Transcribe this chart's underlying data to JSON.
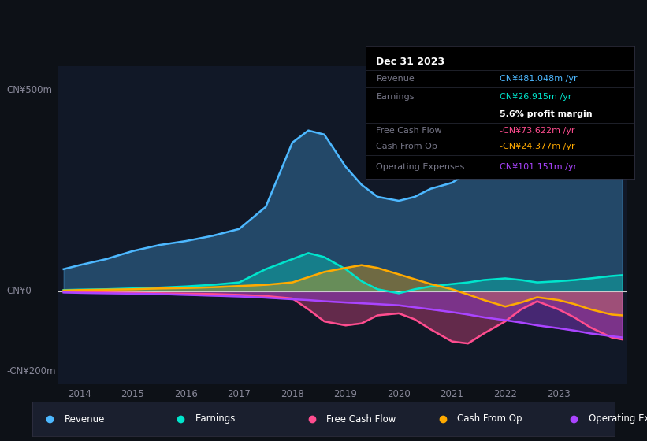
{
  "bg_color": "#0d1117",
  "plot_bg_color": "#111827",
  "ylim": [
    -230,
    560
  ],
  "xlim": [
    2013.6,
    2024.3
  ],
  "xticks": [
    2014,
    2015,
    2016,
    2017,
    2018,
    2019,
    2020,
    2021,
    2022,
    2023
  ],
  "years": [
    2013.7,
    2014.0,
    2014.5,
    2015.0,
    2015.5,
    2016.0,
    2016.5,
    2017.0,
    2017.5,
    2018.0,
    2018.3,
    2018.6,
    2019.0,
    2019.3,
    2019.6,
    2020.0,
    2020.3,
    2020.6,
    2021.0,
    2021.3,
    2021.6,
    2022.0,
    2022.3,
    2022.6,
    2023.0,
    2023.3,
    2023.6,
    2024.0,
    2024.2
  ],
  "revenue": [
    55,
    65,
    80,
    100,
    115,
    125,
    138,
    155,
    210,
    370,
    400,
    390,
    310,
    265,
    235,
    225,
    235,
    255,
    270,
    295,
    325,
    355,
    400,
    440,
    470,
    500,
    520,
    545,
    548
  ],
  "earnings": [
    3,
    4,
    5,
    7,
    9,
    12,
    16,
    22,
    55,
    80,
    95,
    85,
    55,
    25,
    5,
    -5,
    5,
    12,
    18,
    22,
    28,
    32,
    28,
    22,
    25,
    28,
    32,
    38,
    40
  ],
  "free_cash_flow": [
    -1,
    -2,
    -3,
    -4,
    -5,
    -6,
    -7,
    -9,
    -12,
    -18,
    -45,
    -75,
    -85,
    -80,
    -60,
    -55,
    -70,
    -95,
    -125,
    -130,
    -105,
    -75,
    -45,
    -25,
    -45,
    -65,
    -90,
    -115,
    -120
  ],
  "cash_from_op": [
    2,
    3,
    4,
    5,
    7,
    8,
    10,
    13,
    16,
    22,
    35,
    48,
    58,
    65,
    58,
    42,
    30,
    18,
    5,
    -8,
    -22,
    -38,
    -28,
    -15,
    -22,
    -32,
    -45,
    -58,
    -60
  ],
  "operating_expenses": [
    -3,
    -4,
    -5,
    -6,
    -7,
    -9,
    -11,
    -13,
    -16,
    -20,
    -22,
    -25,
    -28,
    -30,
    -32,
    -35,
    -40,
    -45,
    -52,
    -58,
    -65,
    -72,
    -78,
    -85,
    -92,
    -98,
    -105,
    -112,
    -115
  ],
  "color_revenue": "#4db8ff",
  "color_earnings": "#00e5cc",
  "color_fcf": "#ff4d8f",
  "color_cashop": "#ffaa00",
  "color_opex": "#aa44ff",
  "ylabel_500": "CN¥500m",
  "ylabel_0": "CN¥0",
  "ylabel_neg200": "-CN¥200m",
  "info_box": {
    "title": "Dec 31 2023",
    "revenue_label": "Revenue",
    "revenue_val": "CN¥481.048m /yr",
    "earnings_label": "Earnings",
    "earnings_val": "CN¥26.915m /yr",
    "margin_val": "5.6% profit margin",
    "fcf_label": "Free Cash Flow",
    "fcf_val": "-CN¥73.622m /yr",
    "cashop_label": "Cash From Op",
    "cashop_val": "-CN¥24.377m /yr",
    "opex_label": "Operating Expenses",
    "opex_val": "CN¥101.151m /yr"
  },
  "legend": [
    {
      "label": "Revenue",
      "color": "#4db8ff"
    },
    {
      "label": "Earnings",
      "color": "#00e5cc"
    },
    {
      "label": "Free Cash Flow",
      "color": "#ff4d8f"
    },
    {
      "label": "Cash From Op",
      "color": "#ffaa00"
    },
    {
      "label": "Operating Expenses",
      "color": "#aa44ff"
    }
  ]
}
